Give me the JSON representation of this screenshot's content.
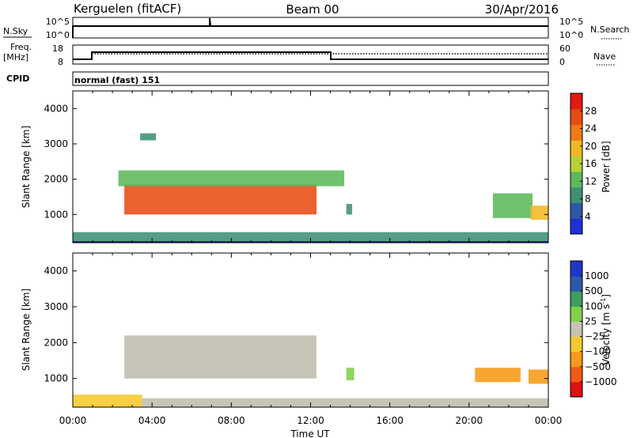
{
  "header": {
    "station": "Kerguelen (fitACF)",
    "beam": "Beam 00",
    "date": "30/Apr/2016"
  },
  "status_panels": {
    "nsky_label": "N.Sky",
    "nsearch_label": "N.Search",
    "nsky_ticks": [
      "10^5",
      "10^0"
    ],
    "freq_label_line1": "Freq.",
    "freq_label_line2": "[MHz]",
    "freq_ticks": [
      "18",
      "8"
    ],
    "nave_label": "Nave",
    "nave_ticks": [
      "60",
      "0"
    ],
    "cpid_label": "CPID",
    "cpid_value": "normal (fast) 151"
  },
  "colors": {
    "power_scale": [
      "#1f2fd6",
      "#2d58a8",
      "#3f8f77",
      "#5db85c",
      "#b5d23a",
      "#f2b824",
      "#f07a16",
      "#e84b12",
      "#e21a10"
    ],
    "velocity_scale": [
      "#e01010",
      "#f25a12",
      "#f79a16",
      "#f6c92c",
      "#c8c4b4",
      "#7fd04a",
      "#3e9e5f",
      "#2d5aa8",
      "#1f36c7"
    ],
    "ground_scatter": "#bfbcae",
    "axis": "#000000"
  },
  "chart_data": [
    {
      "type": "heatmap",
      "name": "power",
      "xlabel": "",
      "ylabel": "Slant Range [km]",
      "x_range_hours": [
        0,
        24
      ],
      "ylim": [
        200,
        4500
      ],
      "y_ticks": [
        1000,
        2000,
        3000,
        4000
      ],
      "colorbar_label": "Power [dB]",
      "colorbar_ticks": [
        "4",
        "8",
        "12",
        "16",
        "20",
        "24",
        "28"
      ],
      "colorbar_range": [
        0,
        32
      ],
      "regions": [
        {
          "t": [
            2.6,
            12.3
          ],
          "r": [
            1000,
            1850
          ],
          "value": 26
        },
        {
          "t": [
            2.3,
            13.7
          ],
          "r": [
            1800,
            2250
          ],
          "value": 13
        },
        {
          "t": [
            0.0,
            24.0
          ],
          "r": [
            200,
            500
          ],
          "value": 8
        },
        {
          "t": [
            13.8,
            14.1
          ],
          "r": [
            1000,
            1300
          ],
          "value": 9
        },
        {
          "t": [
            21.2,
            23.2
          ],
          "r": [
            900,
            1600
          ],
          "value": 11
        },
        {
          "t": [
            23.1,
            24.0
          ],
          "r": [
            850,
            1250
          ],
          "value": 20
        },
        {
          "t": [
            3.4,
            4.2
          ],
          "r": [
            3100,
            3300
          ],
          "value": 8
        }
      ]
    },
    {
      "type": "heatmap",
      "name": "velocity",
      "xlabel": "Time UT",
      "ylabel": "Slant Range [km]",
      "x_range_hours": [
        0,
        24
      ],
      "x_tick_labels": [
        "00:00",
        "04:00",
        "08:00",
        "12:00",
        "16:00",
        "20:00",
        "00:00"
      ],
      "ylim": [
        200,
        4500
      ],
      "y_ticks": [
        1000,
        2000,
        3000,
        4000
      ],
      "colorbar_label": "Velocity [m s",
      "colorbar_label_sup": "-1",
      "colorbar_label_end": "]",
      "colorbar_ticks": [
        "1000",
        "500",
        "100",
        "25",
        "−25",
        "−100",
        "−500",
        "−1000"
      ],
      "regions": [
        {
          "t": [
            2.6,
            12.3
          ],
          "r": [
            1000,
            2200
          ],
          "value": "ground"
        },
        {
          "t": [
            0.0,
            3.5
          ],
          "r": [
            200,
            550
          ],
          "value": -60
        },
        {
          "t": [
            3.5,
            24.0
          ],
          "r": [
            200,
            450
          ],
          "value": "ground"
        },
        {
          "t": [
            13.8,
            14.2
          ],
          "r": [
            950,
            1300
          ],
          "value": 60
        },
        {
          "t": [
            20.3,
            22.6
          ],
          "r": [
            900,
            1300
          ],
          "value": -300
        },
        {
          "t": [
            23.0,
            24.0
          ],
          "r": [
            850,
            1250
          ],
          "value": -400
        }
      ]
    }
  ]
}
